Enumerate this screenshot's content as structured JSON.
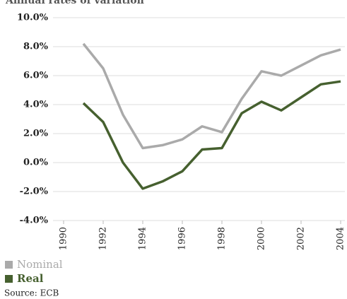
{
  "chart_data": {
    "type": "line",
    "title": "Annual rates of variation",
    "x": [
      1991,
      1992,
      1993,
      1994,
      1995,
      1996,
      1997,
      1998,
      1999,
      2000,
      2001,
      2002,
      2003,
      2004
    ],
    "series": [
      {
        "name": "Nominal",
        "color": "#aaaaaa",
        "values": [
          8.2,
          6.5,
          3.3,
          1.0,
          1.2,
          1.6,
          2.5,
          2.1,
          4.4,
          6.3,
          6.0,
          6.7,
          7.4,
          7.8
        ]
      },
      {
        "name": "Real",
        "color": "#46602f",
        "values": [
          4.1,
          2.8,
          0.0,
          -1.8,
          -1.3,
          -0.6,
          0.9,
          1.0,
          3.4,
          4.2,
          3.6,
          4.5,
          5.4,
          5.6
        ]
      }
    ],
    "xlim": [
      1990,
      2004
    ],
    "xticks": [
      1990,
      1992,
      1994,
      1996,
      1998,
      2000,
      2002,
      2004
    ],
    "ylim": [
      -4,
      10
    ],
    "yticks": [
      {
        "value": -4,
        "label": "-4.0%"
      },
      {
        "value": -2,
        "label": "-2.0%"
      },
      {
        "value": 0,
        "label": "0.0%"
      },
      {
        "value": 2,
        "label": "2.0%"
      },
      {
        "value": 4,
        "label": "4.0%"
      },
      {
        "value": 6,
        "label": "6.0%"
      },
      {
        "value": 8,
        "label": "8.0%"
      },
      {
        "value": 10,
        "label": "10.0%"
      }
    ],
    "grid": true,
    "legend": "bottom-left",
    "source": "Source: ECB"
  }
}
